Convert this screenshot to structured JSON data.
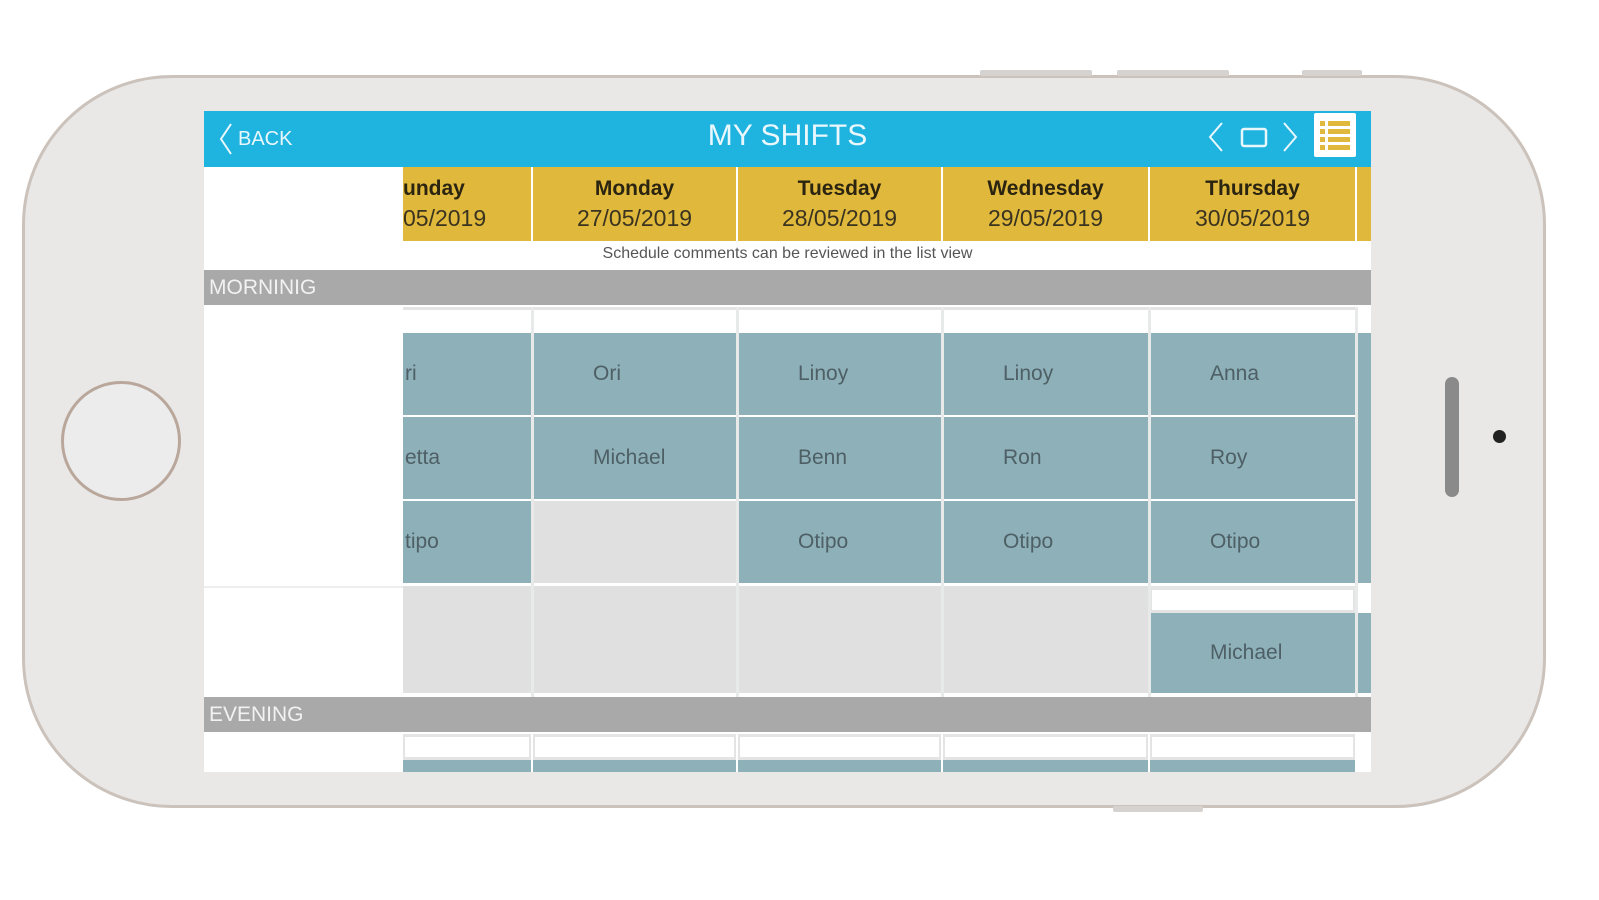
{
  "header": {
    "back_label": "BACK",
    "title": "MY SHIFTS"
  },
  "comment": "Schedule comments can be reviewed in the list view",
  "sections": {
    "morning": "MORNINIG",
    "evening": "EVENING"
  },
  "colors": {
    "header": "#1fb3df",
    "day_header": "#e0b93c",
    "shift_cell": "#8eb0b8",
    "section_bar": "#a9a9a9"
  },
  "columns": [
    {
      "day": "unday",
      "date": "05/2019",
      "cells": [
        "ri",
        "etta",
        "tipo"
      ],
      "extra": null
    },
    {
      "day": "Monday",
      "date": "27/05/2019",
      "cells": [
        "Ori",
        "Michael",
        ""
      ],
      "extra": null
    },
    {
      "day": "Tuesday",
      "date": "28/05/2019",
      "cells": [
        "Linoy",
        "Benn",
        "Otipo"
      ],
      "extra": null
    },
    {
      "day": "Wednesday",
      "date": "29/05/2019",
      "cells": [
        "Linoy",
        "Ron",
        "Otipo"
      ],
      "extra": null
    },
    {
      "day": "Thursday",
      "date": "30/05/2019",
      "cells": [
        "Anna",
        "Roy",
        "Otipo"
      ],
      "extra": "Michael"
    }
  ]
}
